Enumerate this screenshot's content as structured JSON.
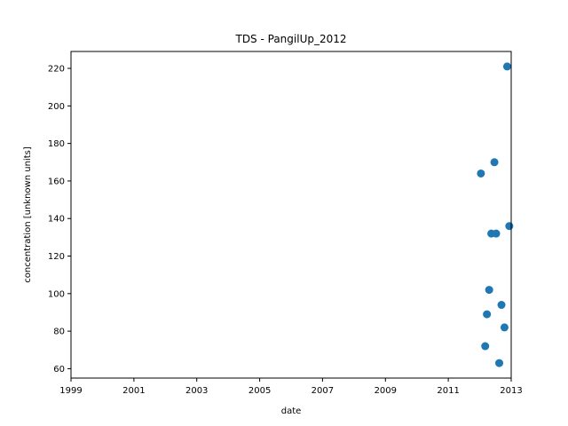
{
  "chart_data": {
    "type": "scatter",
    "title": "TDS - PangilUp_2012",
    "xlabel": "date",
    "ylabel": "concentration [unknown units]",
    "xlim": [
      "1999-01-01",
      "2013-01-01"
    ],
    "ylim": [
      55,
      229
    ],
    "x_ticks": [
      "1999",
      "2001",
      "2003",
      "2005",
      "2007",
      "2009",
      "2011",
      "2013"
    ],
    "y_ticks": [
      60,
      80,
      100,
      120,
      140,
      160,
      180,
      200,
      220
    ],
    "grid": false,
    "marker_color": "#1f77b4",
    "points": [
      {
        "x": "2012-01-15",
        "y": 164
      },
      {
        "x": "2012-03-05",
        "y": 72
      },
      {
        "x": "2012-03-25",
        "y": 89
      },
      {
        "x": "2012-04-20",
        "y": 102
      },
      {
        "x": "2012-05-15",
        "y": 132
      },
      {
        "x": "2012-06-20",
        "y": 170
      },
      {
        "x": "2012-07-10",
        "y": 132
      },
      {
        "x": "2012-08-15",
        "y": 63
      },
      {
        "x": "2012-09-10",
        "y": 94
      },
      {
        "x": "2012-10-15",
        "y": 82
      },
      {
        "x": "2012-11-15",
        "y": 221
      },
      {
        "x": "2012-12-10",
        "y": 136
      }
    ]
  }
}
